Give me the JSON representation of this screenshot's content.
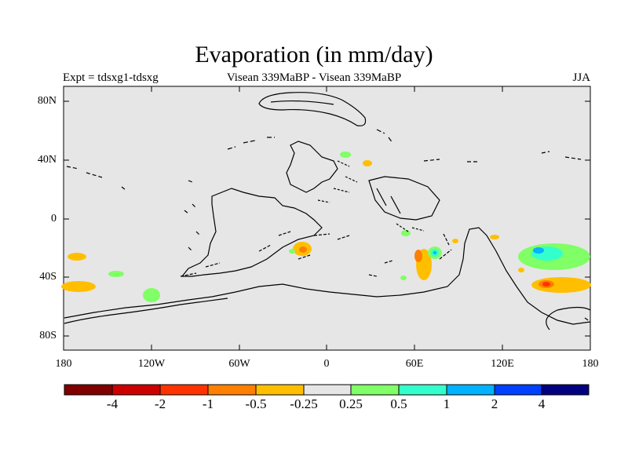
{
  "title": "Evaporation (in mm/day)",
  "subtitle_left": "Expt = tdsxg1-tdsxg",
  "subtitle_center": "Visean 339MaBP - Visean 339MaBP",
  "subtitle_right": "JJA",
  "map": {
    "projection": "equirectangular",
    "lon_range": [
      -180,
      180
    ],
    "lat_range": [
      -90,
      90
    ],
    "background": "#e6e6e6",
    "y_ticks": [
      "80N",
      "40N",
      "0",
      "40S",
      "80S"
    ],
    "x_ticks": [
      "180",
      "120W",
      "60W",
      "0",
      "60E",
      "120E",
      "180"
    ]
  },
  "colorbar": {
    "colors": [
      "#800000",
      "#cc0000",
      "#ff3300",
      "#ff7f00",
      "#ffbf00",
      "#e6e6e6",
      "#80ff66",
      "#33ffcc",
      "#00b2ff",
      "#0040ff",
      "#000080"
    ],
    "labels": [
      "-4",
      "-2",
      "-1",
      "-0.5",
      "-0.25",
      "0.25",
      "0.5",
      "1",
      "2",
      "4"
    ]
  }
}
